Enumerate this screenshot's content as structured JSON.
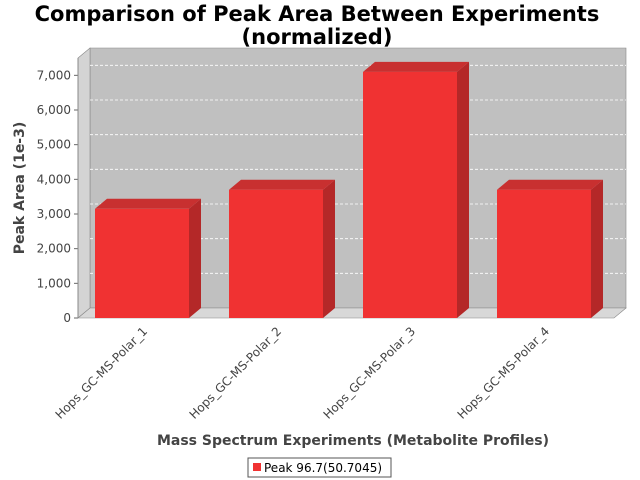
{
  "chart_data": {
    "type": "bar",
    "title_line1": "Comparison of Peak Area Between Experiments",
    "title_line2": "(normalized)",
    "xlabel": "Mass Spectrum Experiments (Metabolite Profiles)",
    "ylabel": "Peak Area (1e-3)",
    "categories": [
      "Hops_GC-MS-Polar_1",
      "Hops_GC-MS-Polar_2",
      "Hops_GC-MS-Polar_3",
      "Hops_GC-MS-Polar_4"
    ],
    "series": [
      {
        "name": "Peak 96.7(50.7045)",
        "values": [
          3150,
          3700,
          7100,
          3700
        ]
      }
    ],
    "ylim": [
      0,
      7500
    ],
    "yticks": [
      0,
      1000,
      2000,
      3000,
      4000,
      5000,
      6000,
      7000
    ],
    "ytick_labels": [
      "0",
      "1,000",
      "2,000",
      "3,000",
      "4,000",
      "5,000",
      "6,000",
      "7,000"
    ],
    "grid": true,
    "legend_position": "bottom",
    "colors": {
      "bar_front": "#f03232",
      "bar_side": "#b42828",
      "bar_top": "#c83030",
      "plot_back": "#c0c0c0",
      "plot_floor": "#d8d8d8"
    }
  }
}
